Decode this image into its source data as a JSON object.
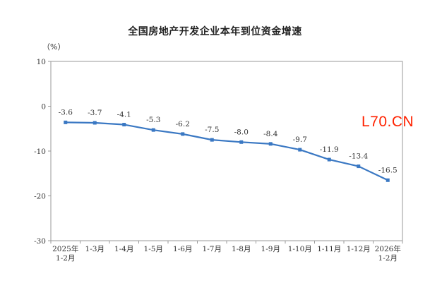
{
  "chart_data": {
    "type": "line",
    "title": "全国房地产开发企业本年到位资金增速",
    "unit_label": "（%）",
    "categories": [
      [
        "2025年",
        "1-2月"
      ],
      [
        "1-3月"
      ],
      [
        "1-4月"
      ],
      [
        "1-5月"
      ],
      [
        "1-6月"
      ],
      [
        "1-7月"
      ],
      [
        "1-8月"
      ],
      [
        "1-9月"
      ],
      [
        "1-10月"
      ],
      [
        "1-11月"
      ],
      [
        "1-12月"
      ],
      [
        "2026年",
        "1-2月"
      ]
    ],
    "values": [
      -3.6,
      -3.7,
      -4.1,
      -5.3,
      -6.2,
      -7.5,
      -8.0,
      -8.4,
      -9.7,
      -11.9,
      -13.4,
      -16.5
    ],
    "value_labels": [
      "-3.6",
      "-3.7",
      "-4.1",
      "-5.3",
      "-6.2",
      "-7.5",
      "-8.0",
      "-8.4",
      "-9.7",
      "-11.9",
      "-13.4",
      "-16.5"
    ],
    "ylim": [
      -30,
      10
    ],
    "yticks": [
      10,
      0,
      -10,
      -20,
      -30
    ],
    "xlabel": "",
    "ylabel": "",
    "grid": false,
    "line_color": "#3a78c3"
  },
  "watermark": {
    "text": "L70.CN",
    "color": "#ff2200"
  }
}
